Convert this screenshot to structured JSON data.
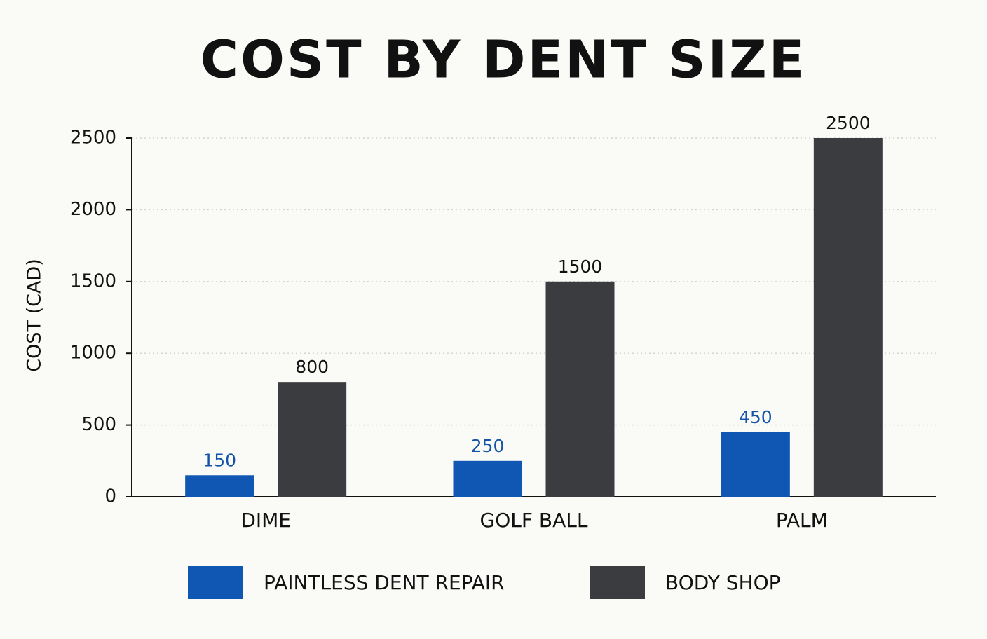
{
  "chart_data": {
    "type": "bar",
    "title": "COST BY DENT SIZE",
    "y_label": "COST (CAD)",
    "categories": [
      "DIME",
      "GOLF BALL",
      "PALM"
    ],
    "series": [
      {
        "name": "PAINTLESS DENT REPAIR",
        "color": "#0f57b3",
        "label_color": "#1454a8",
        "values": [
          150,
          250,
          450
        ]
      },
      {
        "name": "BODY SHOP",
        "color": "#3a3c3f",
        "label_color": "#111111",
        "values": [
          800,
          1500,
          2500
        ]
      }
    ],
    "ylim": [
      0,
      2500
    ],
    "yticks": [
      0,
      500,
      1000,
      1500,
      2000,
      2500
    ],
    "grid": true,
    "legend": "bottom"
  }
}
